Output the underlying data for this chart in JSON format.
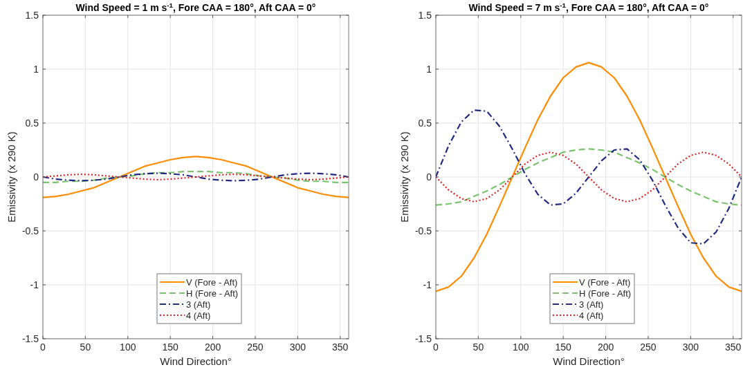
{
  "chart_data": [
    {
      "type": "line",
      "title": "Wind Speed = 1 m s$^{-1}$, Fore CAA = 180°, Aft CAA = 0°",
      "xlabel": "Wind Direction°",
      "ylabel": "Emissivity (x 290 K)",
      "x": [
        0,
        15,
        30,
        45,
        60,
        75,
        90,
        105,
        120,
        135,
        150,
        165,
        180,
        195,
        210,
        225,
        240,
        255,
        270,
        285,
        300,
        315,
        330,
        345,
        360
      ],
      "xlim": [
        0,
        360
      ],
      "xticks": [
        0,
        50,
        100,
        150,
        200,
        250,
        300,
        350
      ],
      "ylim": [
        -1.5,
        1.5
      ],
      "yticks": [
        -1.5,
        -1,
        -0.5,
        0,
        0.5,
        1,
        1.5
      ],
      "grid": true,
      "legend": "bottom",
      "series": [
        {
          "name": "V (Fore - Aft)",
          "color": "#ff8c00",
          "line_style": "solid",
          "values": [
            -0.19,
            -0.18,
            -0.16,
            -0.13,
            -0.1,
            -0.05,
            0,
            0.05,
            0.1,
            0.13,
            0.16,
            0.18,
            0.19,
            0.18,
            0.16,
            0.13,
            0.1,
            0.05,
            0,
            -0.05,
            -0.1,
            -0.13,
            -0.16,
            -0.18,
            -0.19
          ]
        },
        {
          "name": "H (Fore - Aft)",
          "color": "#77c46b",
          "line_style": "dashed",
          "values": [
            -0.05,
            -0.05,
            -0.04,
            -0.04,
            -0.03,
            -0.01,
            0,
            0.01,
            0.03,
            0.04,
            0.04,
            0.05,
            0.05,
            0.05,
            0.04,
            0.04,
            0.03,
            0.01,
            0,
            -0.01,
            -0.03,
            -0.04,
            -0.04,
            -0.05,
            -0.05
          ]
        },
        {
          "name": "3 (Aft)",
          "color": "#1f2a80",
          "line_style": "dashdot",
          "values": [
            0,
            -0.02,
            -0.03,
            -0.035,
            -0.03,
            -0.02,
            0,
            0.02,
            0.03,
            0.035,
            0.03,
            0.02,
            0,
            -0.02,
            -0.03,
            -0.035,
            -0.03,
            -0.02,
            0,
            0.02,
            0.03,
            0.035,
            0.03,
            0.02,
            0
          ]
        },
        {
          "name": "4 (Aft)",
          "color": "#e01f1f",
          "line_style": "dotted",
          "values": [
            0,
            0.01,
            0.02,
            0.025,
            0.02,
            0.01,
            0,
            -0.01,
            -0.02,
            -0.025,
            -0.02,
            -0.01,
            0,
            0.01,
            0.02,
            0.025,
            0.02,
            0.01,
            0,
            -0.01,
            -0.02,
            -0.025,
            -0.02,
            -0.01,
            0
          ]
        }
      ]
    },
    {
      "type": "line",
      "title": "Wind Speed = 7 m s$^{-1}$, Fore CAA = 180°, Aft CAA = 0°",
      "xlabel": "Wind Direction°",
      "ylabel": "Emissivity (x 290 K)",
      "x": [
        0,
        15,
        30,
        45,
        60,
        75,
        90,
        105,
        120,
        135,
        150,
        165,
        180,
        195,
        210,
        225,
        240,
        255,
        270,
        285,
        300,
        315,
        330,
        345,
        360
      ],
      "xlim": [
        0,
        360
      ],
      "xticks": [
        0,
        50,
        100,
        150,
        200,
        250,
        300,
        350
      ],
      "ylim": [
        -1.5,
        1.5
      ],
      "yticks": [
        -1.5,
        -1,
        -0.5,
        0,
        0.5,
        1,
        1.5
      ],
      "grid": true,
      "legend": "bottom",
      "series": [
        {
          "name": "V (Fore - Aft)",
          "color": "#ff8c00",
          "line_style": "solid",
          "values": [
            -1.06,
            -1.02,
            -0.92,
            -0.75,
            -0.53,
            -0.27,
            0,
            0.27,
            0.53,
            0.75,
            0.92,
            1.02,
            1.06,
            1.02,
            0.92,
            0.75,
            0.53,
            0.27,
            0,
            -0.27,
            -0.53,
            -0.75,
            -0.92,
            -1.02,
            -1.06
          ]
        },
        {
          "name": "H (Fore - Aft)",
          "color": "#77c46b",
          "line_style": "dashed",
          "values": [
            -0.26,
            -0.25,
            -0.23,
            -0.18,
            -0.13,
            -0.07,
            0,
            0.07,
            0.13,
            0.18,
            0.23,
            0.25,
            0.26,
            0.25,
            0.23,
            0.18,
            0.13,
            0.07,
            0,
            -0.07,
            -0.13,
            -0.18,
            -0.23,
            -0.25,
            -0.26
          ]
        },
        {
          "name": "3 (Aft)",
          "color": "#1f2a80",
          "line_style": "dashdot",
          "values": [
            0,
            0.29,
            0.51,
            0.62,
            0.61,
            0.47,
            0.26,
            0.03,
            -0.16,
            -0.26,
            -0.25,
            -0.15,
            0,
            0.15,
            0.25,
            0.26,
            0.16,
            -0.03,
            -0.26,
            -0.47,
            -0.61,
            -0.62,
            -0.51,
            -0.29,
            0
          ]
        },
        {
          "name": "4 (Aft)",
          "color": "#e01f1f",
          "line_style": "dotted",
          "values": [
            0,
            -0.12,
            -0.2,
            -0.23,
            -0.2,
            -0.12,
            0,
            0.12,
            0.2,
            0.23,
            0.2,
            0.12,
            0,
            -0.12,
            -0.2,
            -0.23,
            -0.2,
            -0.12,
            0,
            0.12,
            0.2,
            0.23,
            0.2,
            0.12,
            0
          ]
        }
      ]
    }
  ]
}
